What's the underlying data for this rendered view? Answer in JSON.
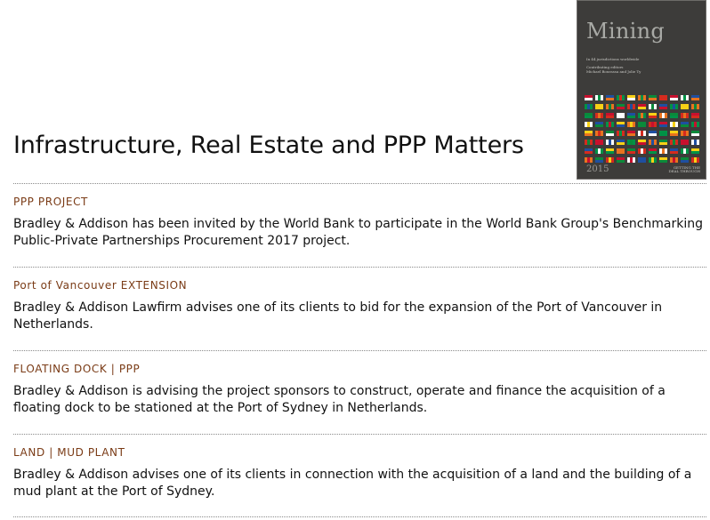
{
  "cover": {
    "title": "Mining",
    "subtitle": "In 44 jurisdictions worldwide",
    "editors_label": "Contributing editors",
    "editors": "Michael Bourassa and Jolie Ty",
    "year": "2015",
    "brand_line1": "GETTING THE",
    "brand_line2": "DEAL THROUGH",
    "flag_colors": [
      "#c8102e",
      "#ffffff",
      "#1f4fa0",
      "#009246",
      "#f7d116",
      "#e8731f",
      "#0a8a3a",
      "#d52b1e"
    ]
  },
  "heading": "Infrastructure, Real Estate and PPP Matters",
  "entries": [
    {
      "title": "PPP PROJECT",
      "text": "Bradley & Addison has been invited by the World Bank to participate in the World Bank Group's Benchmarking Public-Private Partnerships Procurement 2017 project."
    },
    {
      "title": "Port of Vancouver EXTENSION",
      "text": "Bradley & Addison Lawfirm advises one of its clients to bid for the expansion of the Port of Vancouver in Netherlands."
    },
    {
      "title": "FLOATING DOCK | PPP",
      "text": "Bradley & Addison is advising the project sponsors to construct, operate and finance the acquisition of a floating dock to be stationed at the Port of Sydney in Netherlands."
    },
    {
      "title": "LAND | MUD PLANT",
      "text": "Bradley & Addison advises one of its clients in connection with the acquisition of a land and the building of a mud plant at the Port of Sydney."
    }
  ]
}
